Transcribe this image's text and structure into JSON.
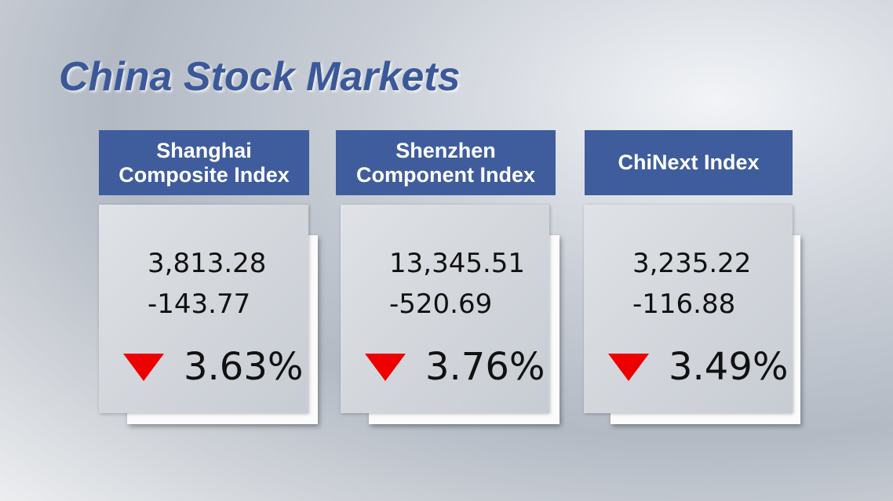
{
  "title": "China Stock Markets",
  "cards": [
    {
      "name_lines": [
        "Shanghai",
        "Composite Index"
      ],
      "value": "3,813.28",
      "change": "-143.77",
      "percent": "3.63%"
    },
    {
      "name_lines": [
        "Shenzhen",
        "Component Index"
      ],
      "value": "13,345.51",
      "change": "-520.69",
      "percent": "3.76%"
    },
    {
      "name_lines": [
        "ChiNext Index"
      ],
      "value": "3,235.22",
      "change": "-116.88",
      "percent": "3.49%"
    }
  ]
}
